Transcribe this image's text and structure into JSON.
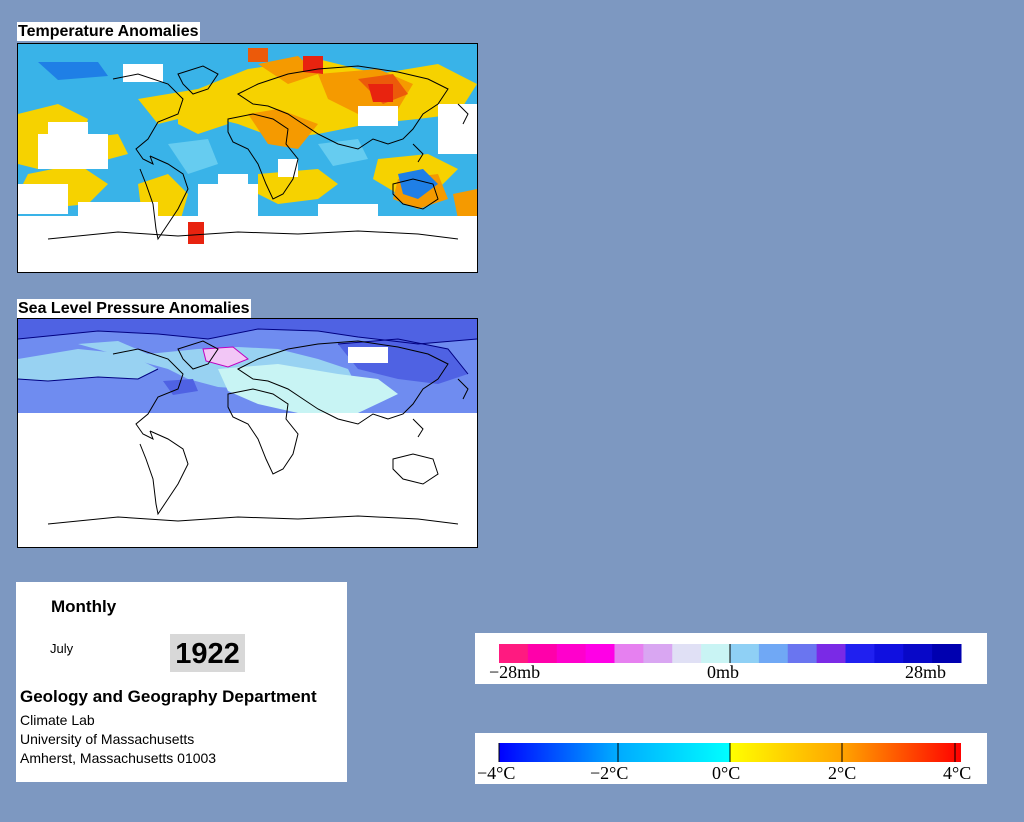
{
  "temperature_map": {
    "title": "Temperature Anomalies",
    "colors": {
      "cold_strong": "#1f7fe6",
      "cold": "#39b3e8",
      "cold_light": "#66ccf0",
      "warm": "#f6d200",
      "warm_strong": "#f59a00",
      "hot": "#ec5a0a",
      "hottest": "#e8230f",
      "no_data": "#ffffff"
    }
  },
  "pressure_map": {
    "title": "Sea Level Pressure Anomalies",
    "colors": {
      "high_strong": "#4f62e3",
      "high": "#6f8cf0",
      "high_light": "#98d2f2",
      "near_zero": "#c8f4f4",
      "low": "#f2c6f6",
      "contour": "#000080",
      "no_data": "#ffffff"
    }
  },
  "info": {
    "period": "Monthly",
    "month": "July",
    "year": "1922",
    "department": "Geology and Geography Department",
    "lab": "Climate Lab",
    "university": "University of Massachusetts",
    "address": "Amherst, Massachusetts 01003"
  },
  "pressure_legend": {
    "labels": [
      "−28mb",
      "0mb",
      "28mb"
    ],
    "colors": [
      "#ff1a80",
      "#ff00aa",
      "#ff00cc",
      "#ff00e6",
      "#e680f0",
      "#d9a6f2",
      "#e0e0f5",
      "#c9f4f4",
      "#8fd0f5",
      "#70a8f5",
      "#6a75f0",
      "#7a2ae6",
      "#2020f0",
      "#1010e0",
      "#0808c8",
      "#0000b0"
    ]
  },
  "temperature_legend": {
    "labels": [
      "−4°C",
      "−2°C",
      "0°C",
      "2°C",
      "4°C"
    ],
    "gradient": [
      "#0000ff",
      "#00a8ff",
      "#00ffff",
      "#ffff00",
      "#ffa000",
      "#ff0000"
    ]
  }
}
